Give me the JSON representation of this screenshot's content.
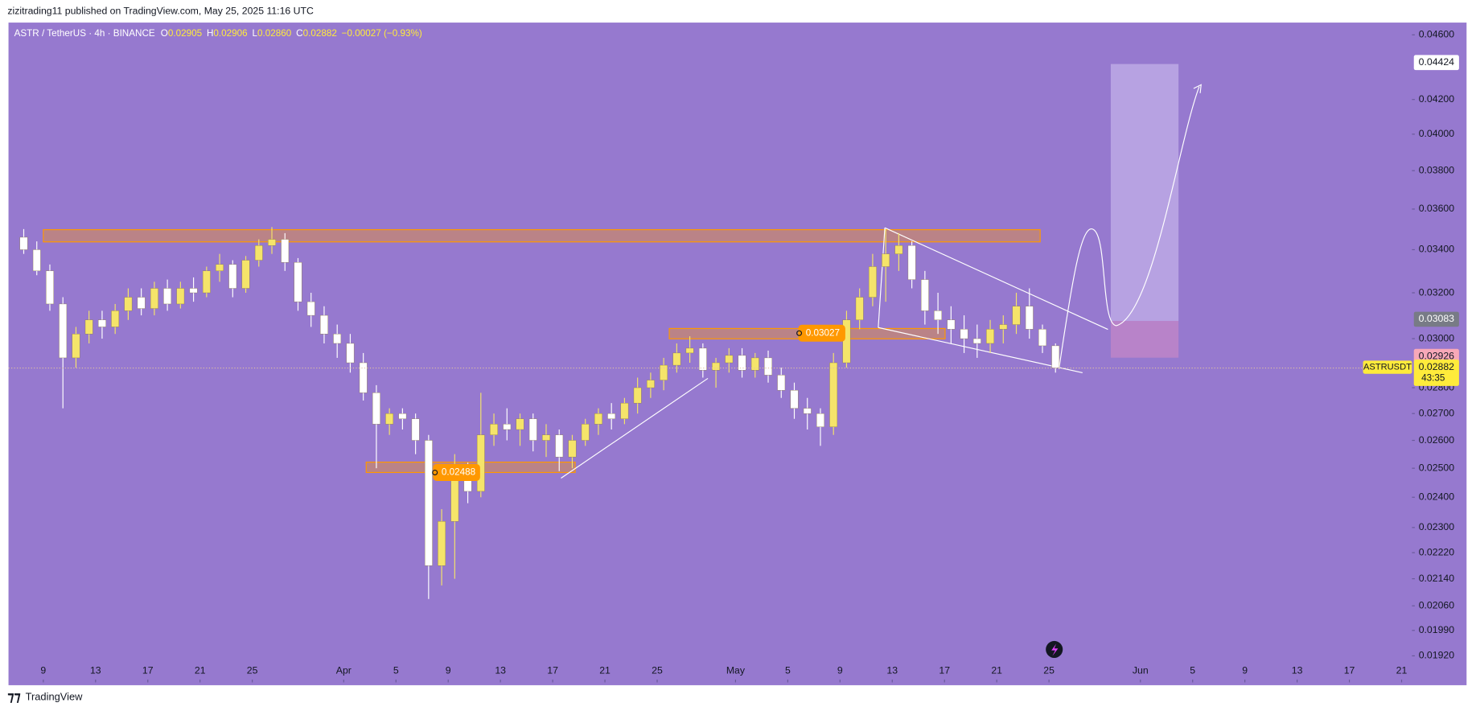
{
  "header": "zizitrading11 published on TradingView.com, May 25, 2025 11:16 UTC",
  "footer": "TradingView",
  "legend": {
    "symbol": "ASTR / TetherUS · 4h · BINANCE",
    "items": [
      {
        "key": "O",
        "value": "0.02905"
      },
      {
        "key": "H",
        "value": "0.02906"
      },
      {
        "key": "L",
        "value": "0.02860"
      },
      {
        "key": "C",
        "value": "0.02882"
      }
    ],
    "change": "−0.00027 (−0.93%)"
  },
  "chart_data": {
    "type": "candlestick",
    "log_scale": true,
    "grid": false,
    "up_color": "#f5e46a",
    "down_color": "#ffffff",
    "x": [
      "03-07",
      "03-08",
      "03-09",
      "03-10",
      "03-11",
      "03-12",
      "03-13",
      "03-14",
      "03-15",
      "03-16",
      "03-17",
      "03-18",
      "03-19",
      "03-20",
      "03-21",
      "03-22",
      "03-23",
      "03-24",
      "03-25",
      "03-26",
      "03-27",
      "03-28",
      "03-29",
      "03-30",
      "03-31",
      "04-01",
      "04-02",
      "04-03",
      "04-04",
      "04-05",
      "04-06",
      "04-07",
      "04-08",
      "04-09",
      "04-10",
      "04-11",
      "04-12",
      "04-13",
      "04-14",
      "04-15",
      "04-16",
      "04-17",
      "04-18",
      "04-19",
      "04-20",
      "04-21",
      "04-22",
      "04-23",
      "04-24",
      "04-25",
      "04-26",
      "04-27",
      "04-28",
      "04-29",
      "04-30",
      "05-01",
      "05-02",
      "05-03",
      "05-04",
      "05-05",
      "05-06",
      "05-07",
      "05-08",
      "05-09",
      "05-10",
      "05-11",
      "05-12",
      "05-13",
      "05-14",
      "05-15",
      "05-16",
      "05-17",
      "05-18",
      "05-19",
      "05-20",
      "05-21",
      "05-22",
      "05-23",
      "05-24",
      "05-25"
    ],
    "open": [
      0.0346,
      0.034,
      0.033,
      0.0315,
      0.0292,
      0.0302,
      0.0308,
      0.0305,
      0.0312,
      0.0318,
      0.0313,
      0.0322,
      0.0315,
      0.0322,
      0.032,
      0.033,
      0.0333,
      0.0322,
      0.0335,
      0.0342,
      0.0345,
      0.0334,
      0.0316,
      0.031,
      0.0302,
      0.0298,
      0.029,
      0.0278,
      0.0266,
      0.027,
      0.0268,
      0.026,
      0.0218,
      0.0232,
      0.0248,
      0.0242,
      0.0262,
      0.0266,
      0.0264,
      0.0268,
      0.026,
      0.0262,
      0.0254,
      0.026,
      0.0266,
      0.027,
      0.0268,
      0.0274,
      0.028,
      0.0283,
      0.0289,
      0.0294,
      0.0296,
      0.0287,
      0.029,
      0.0293,
      0.0287,
      0.0292,
      0.0285,
      0.0279,
      0.0272,
      0.027,
      0.0265,
      0.029,
      0.0308,
      0.0318,
      0.0332,
      0.0338,
      0.0342,
      0.0326,
      0.0312,
      0.0308,
      0.0304,
      0.03,
      0.0298,
      0.0304,
      0.0306,
      0.0314,
      0.0304,
      0.0297
    ],
    "high": [
      0.035,
      0.0344,
      0.0333,
      0.0318,
      0.0305,
      0.0312,
      0.0312,
      0.0315,
      0.0322,
      0.0322,
      0.0325,
      0.0326,
      0.0325,
      0.0327,
      0.0332,
      0.0338,
      0.0335,
      0.0337,
      0.0345,
      0.0351,
      0.0348,
      0.0336,
      0.032,
      0.0314,
      0.0306,
      0.0302,
      0.0294,
      0.0281,
      0.0272,
      0.0272,
      0.027,
      0.0262,
      0.0236,
      0.0255,
      0.0252,
      0.0278,
      0.027,
      0.0272,
      0.027,
      0.027,
      0.0266,
      0.0264,
      0.0262,
      0.0268,
      0.0272,
      0.0274,
      0.0276,
      0.0284,
      0.0286,
      0.0292,
      0.0298,
      0.0301,
      0.0298,
      0.0292,
      0.0296,
      0.0296,
      0.0294,
      0.0295,
      0.0288,
      0.0282,
      0.0276,
      0.0272,
      0.0294,
      0.0312,
      0.0322,
      0.0338,
      0.035,
      0.0348,
      0.0344,
      0.033,
      0.032,
      0.0314,
      0.031,
      0.0306,
      0.0308,
      0.031,
      0.032,
      0.0322,
      0.0306,
      0.0298
    ],
    "low": [
      0.0338,
      0.0328,
      0.0312,
      0.0272,
      0.0288,
      0.0298,
      0.03,
      0.0302,
      0.0308,
      0.031,
      0.031,
      0.0312,
      0.0313,
      0.0316,
      0.0318,
      0.0325,
      0.0318,
      0.032,
      0.0332,
      0.0338,
      0.033,
      0.0312,
      0.0305,
      0.0298,
      0.0292,
      0.0286,
      0.0275,
      0.025,
      0.0262,
      0.0264,
      0.0255,
      0.0208,
      0.0212,
      0.0214,
      0.0238,
      0.024,
      0.0258,
      0.026,
      0.0258,
      0.0256,
      0.0254,
      0.0249,
      0.025,
      0.0258,
      0.0262,
      0.0264,
      0.0266,
      0.027,
      0.0276,
      0.0279,
      0.0286,
      0.029,
      0.0284,
      0.028,
      0.0286,
      0.0284,
      0.0284,
      0.0282,
      0.0276,
      0.0268,
      0.0264,
      0.0258,
      0.0262,
      0.0288,
      0.0304,
      0.0314,
      0.0316,
      0.033,
      0.0322,
      0.0306,
      0.0302,
      0.0298,
      0.0294,
      0.0292,
      0.0294,
      0.0298,
      0.0302,
      0.03,
      0.0294,
      0.0286
    ],
    "close": [
      0.034,
      0.033,
      0.0315,
      0.0292,
      0.0302,
      0.0308,
      0.0305,
      0.0312,
      0.0318,
      0.0313,
      0.0322,
      0.0315,
      0.0322,
      0.032,
      0.033,
      0.0333,
      0.0322,
      0.0335,
      0.0342,
      0.0345,
      0.0334,
      0.0316,
      0.031,
      0.0302,
      0.0298,
      0.029,
      0.0278,
      0.0266,
      0.027,
      0.0268,
      0.026,
      0.0218,
      0.0232,
      0.0248,
      0.0242,
      0.0262,
      0.0266,
      0.0264,
      0.0268,
      0.026,
      0.0262,
      0.0254,
      0.026,
      0.0266,
      0.027,
      0.0268,
      0.0274,
      0.028,
      0.0283,
      0.0289,
      0.0294,
      0.0296,
      0.0287,
      0.029,
      0.0293,
      0.0287,
      0.0292,
      0.0285,
      0.0279,
      0.0272,
      0.027,
      0.0265,
      0.029,
      0.0308,
      0.0318,
      0.0332,
      0.0338,
      0.0342,
      0.0326,
      0.0312,
      0.0308,
      0.0304,
      0.03,
      0.0298,
      0.0304,
      0.0306,
      0.0314,
      0.0304,
      0.0297,
      0.0288
    ],
    "ylim": [
      0.01857,
      0.0468
    ],
    "yticks": [
      {
        "value": 0.046,
        "label": "0.04600"
      },
      {
        "value": 0.042,
        "label": "0.04200"
      },
      {
        "value": 0.04,
        "label": "0.04000"
      },
      {
        "value": 0.038,
        "label": "0.03800"
      },
      {
        "value": 0.036,
        "label": "0.03600"
      },
      {
        "value": 0.034,
        "label": "0.03400"
      },
      {
        "value": 0.032,
        "label": "0.03200"
      },
      {
        "value": 0.03,
        "label": "0.03000"
      },
      {
        "value": 0.028,
        "label": "0.02800"
      },
      {
        "value": 0.027,
        "label": "0.02700"
      },
      {
        "value": 0.026,
        "label": "0.02600"
      },
      {
        "value": 0.025,
        "label": "0.02500"
      },
      {
        "value": 0.024,
        "label": "0.02400"
      },
      {
        "value": 0.023,
        "label": "0.02300"
      },
      {
        "value": 0.0222,
        "label": "0.02220"
      },
      {
        "value": 0.0214,
        "label": "0.02140"
      },
      {
        "value": 0.0206,
        "label": "0.02060"
      },
      {
        "value": 0.0199,
        "label": "0.01990"
      },
      {
        "value": 0.0192,
        "label": "0.01920"
      }
    ],
    "xticks": [
      {
        "value": "03-09",
        "label": "9"
      },
      {
        "value": "03-13",
        "label": "13"
      },
      {
        "value": "03-17",
        "label": "17"
      },
      {
        "value": "03-21",
        "label": "21"
      },
      {
        "value": "03-25",
        "label": "25"
      },
      {
        "value": "04-01",
        "label": "Apr"
      },
      {
        "value": "04-05",
        "label": "5"
      },
      {
        "value": "04-09",
        "label": "9"
      },
      {
        "value": "04-13",
        "label": "13"
      },
      {
        "value": "04-17",
        "label": "17"
      },
      {
        "value": "04-21",
        "label": "21"
      },
      {
        "value": "04-25",
        "label": "25"
      },
      {
        "value": "05-01",
        "label": "May"
      },
      {
        "value": "05-05",
        "label": "5"
      },
      {
        "value": "05-09",
        "label": "9"
      },
      {
        "value": "05-13",
        "label": "13"
      },
      {
        "value": "05-17",
        "label": "17"
      },
      {
        "value": "05-21",
        "label": "21"
      },
      {
        "value": "05-25",
        "label": "25"
      },
      {
        "value": "06-01",
        "label": "Jun"
      },
      {
        "value": "06-05",
        "label": "5"
      },
      {
        "value": "06-09",
        "label": "9"
      },
      {
        "value": "06-13",
        "label": "13"
      },
      {
        "value": "06-17",
        "label": "17"
      },
      {
        "value": "06-21",
        "label": "21"
      }
    ],
    "price_labels": {
      "target": 0.04424,
      "stop": 0.03083,
      "entry": 0.02926,
      "last": 0.02882,
      "symbol": "ASTRUSDT",
      "countdown": "43:35"
    },
    "zone_labels": {
      "upper": 0.03027,
      "lower": 0.02488
    }
  }
}
